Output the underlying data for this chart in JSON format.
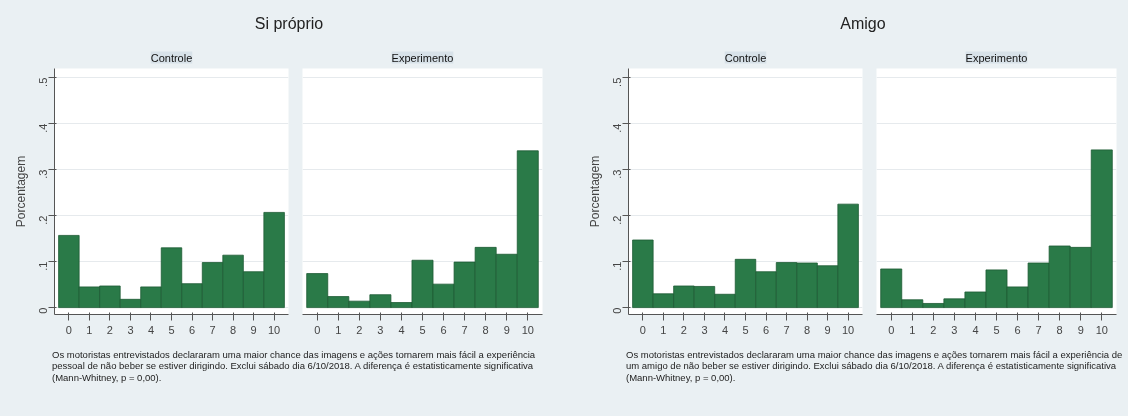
{
  "chart_data": [
    {
      "type": "bar",
      "title": "Si próprio",
      "subtitle": "Controle",
      "ylabel": "Porcentagem",
      "x": [
        0,
        1,
        2,
        3,
        4,
        5,
        6,
        7,
        8,
        9,
        10
      ],
      "values": [
        0.157,
        0.045,
        0.047,
        0.018,
        0.045,
        0.13,
        0.052,
        0.098,
        0.114,
        0.078,
        0.207
      ],
      "color": "#2a7a48",
      "xlim": [
        -0.7,
        10.7
      ],
      "xticks": [
        0,
        1,
        2,
        3,
        4,
        5,
        6,
        7,
        8,
        9,
        10
      ],
      "ylim": [
        -0.015,
        0.52
      ],
      "yticks": [
        0,
        {
          "value": 0.1,
          "label": ".1"
        },
        {
          "value": 0.2,
          "label": ".2"
        },
        {
          "value": 0.3,
          "label": ".3"
        },
        {
          "value": 0.4,
          "label": ".4"
        },
        {
          "value": 0.5,
          "label": ".5"
        }
      ],
      "grid": "y",
      "annotations": [
        "Os motoristas entrevistados declararam uma maior chance das imagens e ações tornarem mais fácil a experiência pessoal de não beber se estiver dirigindo. Exclui sábado dia 6/10/2018. A diferença é estatisticamente significativa (Mann-Whitney, p = 0,00)."
      ]
    },
    {
      "type": "bar",
      "subtitle": "Experimento",
      "x": [
        0,
        1,
        2,
        3,
        4,
        5,
        6,
        7,
        8,
        9,
        10
      ],
      "values": [
        0.074,
        0.024,
        0.014,
        0.028,
        0.011,
        0.103,
        0.051,
        0.099,
        0.131,
        0.116,
        0.341
      ],
      "color": "#2a7a48",
      "xlim": [
        -0.7,
        10.7
      ],
      "xticks": [
        0,
        1,
        2,
        3,
        4,
        5,
        6,
        7,
        8,
        9,
        10
      ],
      "ylim": [
        -0.015,
        0.52
      ],
      "yticks": [
        0.1,
        0.2,
        0.3,
        0.4,
        0.5
      ],
      "grid": "y",
      "tick_labels": "x"
    },
    {
      "type": "bar",
      "title": "Amigo",
      "subtitle": "Controle",
      "ylabel": "Porcentagem",
      "x": [
        0,
        1,
        2,
        3,
        4,
        5,
        6,
        7,
        8,
        9,
        10
      ],
      "values": [
        0.147,
        0.03,
        0.047,
        0.046,
        0.029,
        0.105,
        0.078,
        0.098,
        0.097,
        0.091,
        0.225
      ],
      "color": "#2a7a48",
      "xlim": [
        -0.7,
        10.7
      ],
      "xticks": [
        0,
        1,
        2,
        3,
        4,
        5,
        6,
        7,
        8,
        9,
        10
      ],
      "ylim": [
        -0.015,
        0.52
      ],
      "yticks": [
        0,
        {
          "value": 0.1,
          "label": ".1"
        },
        {
          "value": 0.2,
          "label": ".2"
        },
        {
          "value": 0.3,
          "label": ".3"
        },
        {
          "value": 0.4,
          "label": ".4"
        },
        {
          "value": 0.5,
          "label": ".5"
        }
      ],
      "grid": "y",
      "annotations": [
        "Os motoristas entrevistados declararam uma maior chance das imagens e ações tornarem mais fácil a experiência de um amigo de não beber se estiver dirigindo. Exclui sábado dia 6/10/2018. A diferença é estatisticamente significativa (Mann-Whitney, p = 0,00)."
      ]
    },
    {
      "type": "bar",
      "subtitle": "Experimento",
      "x": [
        0,
        1,
        2,
        3,
        4,
        5,
        6,
        7,
        8,
        9,
        10
      ],
      "values": [
        0.084,
        0.017,
        0.009,
        0.019,
        0.034,
        0.082,
        0.045,
        0.097,
        0.134,
        0.131,
        0.343
      ],
      "color": "#2a7a48",
      "xlim": [
        -0.7,
        10.7
      ],
      "xticks": [
        0,
        1,
        2,
        3,
        4,
        5,
        6,
        7,
        8,
        9,
        10
      ],
      "ylim": [
        -0.015,
        0.52
      ],
      "yticks": [
        0.1,
        0.2,
        0.3,
        0.4,
        0.5
      ],
      "grid": "y",
      "tick_labels": "x"
    }
  ]
}
